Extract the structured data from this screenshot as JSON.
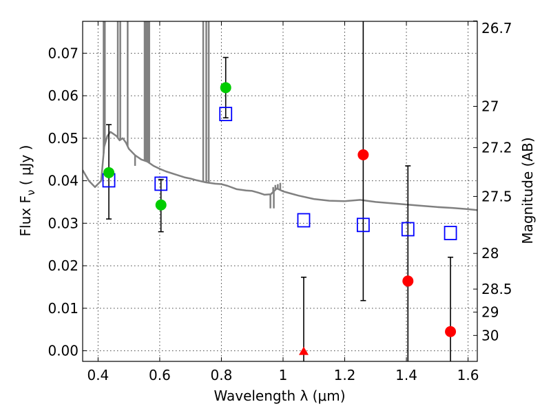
{
  "chart_data": {
    "type": "scatter",
    "xlabel": "Wavelength  λ (μm)",
    "ylabel": "Flux  F_ν  ( μJy )",
    "ylabel_right": "Magnitude (AB)",
    "xlim": [
      0.35,
      1.63
    ],
    "ylim": [
      -0.0025,
      0.0775
    ],
    "x_ticks": [
      0.4,
      0.6,
      0.8,
      1.0,
      1.2,
      1.4,
      1.6
    ],
    "x_tick_labels": [
      "0.4",
      "0.6",
      "0.8",
      "1",
      "1.2",
      "1.4",
      "1.6"
    ],
    "y_ticks": [
      0.0,
      0.01,
      0.02,
      0.03,
      0.04,
      0.05,
      0.06,
      0.07
    ],
    "y_tick_labels": [
      "0.00",
      "0.01",
      "0.02",
      "0.03",
      "0.04",
      "0.05",
      "0.06",
      "0.07"
    ],
    "right_ticks": [
      {
        "label": "26.7",
        "flux": 0.0776
      },
      {
        "label": "27",
        "flux": 0.0575
      },
      {
        "label": "27.2",
        "flux": 0.0478
      },
      {
        "label": "27.5",
        "flux": 0.0363
      },
      {
        "label": "28",
        "flux": 0.0229
      },
      {
        "label": "28.5",
        "flux": 0.0145
      },
      {
        "label": "29",
        "flux": 0.0091
      },
      {
        "label": "30",
        "flux": 0.0036
      }
    ],
    "grid": true,
    "sed_model": {
      "color": "#808080",
      "points": [
        [
          0.35,
          0.0425
        ],
        [
          0.37,
          0.04
        ],
        [
          0.39,
          0.0385
        ],
        [
          0.41,
          0.04
        ],
        [
          0.42,
          0.048
        ],
        [
          0.43,
          0.0505
        ],
        [
          0.44,
          0.0515
        ],
        [
          0.45,
          0.051
        ],
        [
          0.46,
          0.0505
        ],
        [
          0.47,
          0.0495
        ],
        [
          0.48,
          0.05
        ],
        [
          0.49,
          0.049
        ],
        [
          0.5,
          0.0475
        ],
        [
          0.52,
          0.046
        ],
        [
          0.54,
          0.045
        ],
        [
          0.56,
          0.0445
        ],
        [
          0.58,
          0.0435
        ],
        [
          0.6,
          0.0428
        ],
        [
          0.62,
          0.0422
        ],
        [
          0.65,
          0.0415
        ],
        [
          0.68,
          0.0408
        ],
        [
          0.7,
          0.0405
        ],
        [
          0.72,
          0.0401
        ],
        [
          0.75,
          0.0396
        ],
        [
          0.78,
          0.0393
        ],
        [
          0.8,
          0.0392
        ],
        [
          0.82,
          0.0388
        ],
        [
          0.85,
          0.038
        ],
        [
          0.88,
          0.0377
        ],
        [
          0.9,
          0.0376
        ],
        [
          0.92,
          0.0372
        ],
        [
          0.94,
          0.0367
        ],
        [
          0.96,
          0.0368
        ],
        [
          0.98,
          0.0382
        ],
        [
          1.0,
          0.0375
        ],
        [
          1.02,
          0.0371
        ],
        [
          1.05,
          0.0365
        ],
        [
          1.1,
          0.0357
        ],
        [
          1.15,
          0.0353
        ],
        [
          1.2,
          0.0352
        ],
        [
          1.25,
          0.0355
        ],
        [
          1.3,
          0.035
        ],
        [
          1.35,
          0.0347
        ],
        [
          1.4,
          0.0344
        ],
        [
          1.45,
          0.0341
        ],
        [
          1.5,
          0.0338
        ],
        [
          1.55,
          0.0336
        ],
        [
          1.6,
          0.0333
        ],
        [
          1.63,
          0.0331
        ]
      ],
      "spikes": [
        {
          "x": 0.418,
          "top": 0.078
        },
        {
          "x": 0.422,
          "top": 0.078
        },
        {
          "x": 0.464,
          "top": 0.078
        },
        {
          "x": 0.472,
          "top": 0.078
        },
        {
          "x": 0.496,
          "top": 0.078
        },
        {
          "x": 0.551,
          "top": 0.078
        },
        {
          "x": 0.556,
          "top": 0.078
        },
        {
          "x": 0.561,
          "top": 0.078
        },
        {
          "x": 0.566,
          "top": 0.078
        },
        {
          "x": 0.741,
          "top": 0.078
        },
        {
          "x": 0.751,
          "top": 0.078
        },
        {
          "x": 0.759,
          "top": 0.078
        },
        {
          "x": 0.968,
          "top": 0.0385
        },
        {
          "x": 0.975,
          "top": 0.039
        },
        {
          "x": 0.983,
          "top": 0.0392
        },
        {
          "x": 0.991,
          "top": 0.0395
        }
      ],
      "dips": [
        {
          "x": 0.52,
          "bottom": 0.0435
        },
        {
          "x": 0.959,
          "bottom": 0.0335
        },
        {
          "x": 0.97,
          "bottom": 0.0335
        }
      ]
    },
    "model_points": {
      "marker": "open-square",
      "color": "#0000ff",
      "points": [
        [
          0.435,
          0.0401
        ],
        [
          0.604,
          0.0393
        ],
        [
          0.814,
          0.0557
        ],
        [
          1.067,
          0.0307
        ],
        [
          1.26,
          0.0296
        ],
        [
          1.405,
          0.0286
        ],
        [
          1.543,
          0.0277
        ]
      ]
    },
    "observed": {
      "marker": "circle",
      "color": "#00cc00",
      "points": [
        {
          "x": 0.435,
          "y": 0.0419,
          "yerr_low": 0.031,
          "yerr_high": 0.0532
        },
        {
          "x": 0.604,
          "y": 0.0343,
          "yerr_low": 0.028,
          "yerr_high": 0.0403
        },
        {
          "x": 0.814,
          "y": 0.0619,
          "yerr_low": 0.0548,
          "yerr_high": 0.069
        }
      ]
    },
    "observed_nir": {
      "marker": "circle",
      "color": "#ff0000",
      "points": [
        {
          "x": 1.26,
          "y": 0.0461,
          "yerr_low": 0.0118,
          "yerr_high": 0.08
        },
        {
          "x": 1.405,
          "y": 0.0164,
          "yerr_low": -0.003,
          "yerr_high": 0.0435
        },
        {
          "x": 1.543,
          "y": 0.0045,
          "yerr_low": -0.003,
          "yerr_high": 0.022
        }
      ]
    },
    "upper_limit": {
      "marker": "triangle",
      "color": "#ff0000",
      "points": [
        {
          "x": 1.067,
          "y": 0.0,
          "yerr_low": -0.003,
          "yerr_high": 0.0173
        }
      ]
    }
  }
}
